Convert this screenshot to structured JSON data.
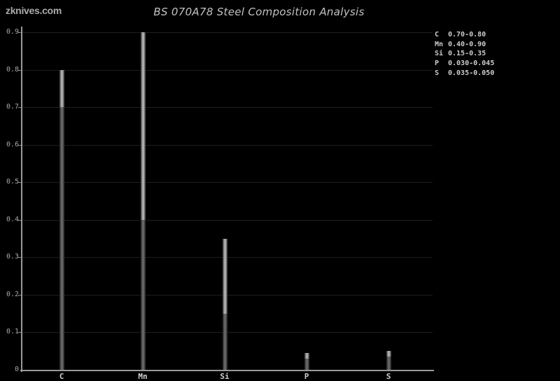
{
  "watermark": "zknives.com",
  "title": "BS 070A78 Steel Composition Analysis",
  "colors": {
    "background": "#000000",
    "title_text": "#c2c2c2",
    "watermark_text": "#ababab",
    "axis": "#9a9a9a",
    "tick": "#8a8a8a",
    "grid": "#1e1e1e",
    "ylabel_text": "#a8a8a8",
    "xlabel_text": "#d0d0d0",
    "legend_text": "#cccccc",
    "bar_bright_center": "#c6c6c6",
    "bar_bright_edge": "#383838",
    "bar_dim_center": "#747474",
    "bar_dim_edge": "#242424"
  },
  "chart_data": {
    "type": "bar",
    "title": "BS 070A78 Steel Composition Analysis",
    "categories": [
      "C",
      "Mn",
      "Si",
      "P",
      "S"
    ],
    "series": [
      {
        "name": "range_min",
        "values": [
          0.7,
          0.4,
          0.15,
          0.03,
          0.035
        ]
      },
      {
        "name": "range_max",
        "values": [
          0.8,
          0.9,
          0.35,
          0.045,
          0.05
        ]
      }
    ],
    "bar_semantics": "Each bar's total height equals range_max; the segment between range_min and range_max is rendered bright, the segment from 0 to range_min is rendered dim",
    "ylim": [
      0,
      0.9
    ],
    "yticks": [
      0,
      0.1,
      0.2,
      0.3,
      0.4,
      0.5,
      0.6,
      0.7,
      0.8,
      0.9
    ],
    "ytick_labels": [
      "0",
      "0.1",
      "0.2",
      "0.3",
      "0.4",
      "0.5",
      "0.6",
      "0.7",
      "0.8",
      "0.9"
    ],
    "grid": "horizontal",
    "legend_position": "top-right",
    "legend": [
      {
        "symbol": "C",
        "range": "0.70-0.80"
      },
      {
        "symbol": "Mn",
        "range": "0.40-0.90"
      },
      {
        "symbol": "Si",
        "range": "0.15-0.35"
      },
      {
        "symbol": "P",
        "range": "0.030-0.045"
      },
      {
        "symbol": "S",
        "range": "0.035-0.050"
      }
    ]
  }
}
